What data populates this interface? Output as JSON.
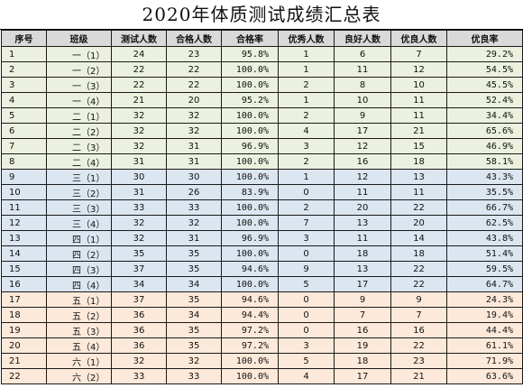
{
  "title": "2020年体质测试成绩汇总表",
  "headers": [
    "序号",
    "班级",
    "测试人数",
    "合格人数",
    "合格率",
    "优秀人数",
    "良好人数",
    "优良人数",
    "优良率"
  ],
  "rows": [
    {
      "group": 1,
      "cells": [
        "1",
        "一（1）",
        "24",
        "23",
        "95.8%",
        "1",
        "6",
        "7",
        "29.2%"
      ]
    },
    {
      "group": 1,
      "cells": [
        "2",
        "一（2）",
        "22",
        "22",
        "100.0%",
        "1",
        "11",
        "12",
        "54.5%"
      ]
    },
    {
      "group": 1,
      "cells": [
        "3",
        "一（3）",
        "22",
        "22",
        "100.0%",
        "2",
        "8",
        "10",
        "45.5%"
      ]
    },
    {
      "group": 1,
      "cells": [
        "4",
        "一（4）",
        "21",
        "20",
        "95.2%",
        "1",
        "10",
        "11",
        "52.4%"
      ]
    },
    {
      "group": 1,
      "cells": [
        "5",
        "二（1）",
        "32",
        "32",
        "100.0%",
        "2",
        "9",
        "11",
        "34.4%"
      ]
    },
    {
      "group": 1,
      "cells": [
        "6",
        "二（2）",
        "32",
        "32",
        "100.0%",
        "4",
        "17",
        "21",
        "65.6%"
      ]
    },
    {
      "group": 1,
      "cells": [
        "7",
        "二（3）",
        "32",
        "31",
        "96.9%",
        "3",
        "12",
        "15",
        "46.9%"
      ]
    },
    {
      "group": 1,
      "cells": [
        "8",
        "二（4）",
        "31",
        "31",
        "100.0%",
        "2",
        "16",
        "18",
        "58.1%"
      ]
    },
    {
      "group": 2,
      "cells": [
        "9",
        "三（1）",
        "30",
        "30",
        "100.0%",
        "1",
        "12",
        "13",
        "43.3%"
      ]
    },
    {
      "group": 2,
      "cells": [
        "10",
        "三（2）",
        "31",
        "26",
        "83.9%",
        "0",
        "11",
        "11",
        "35.5%"
      ]
    },
    {
      "group": 2,
      "cells": [
        "11",
        "三（3）",
        "33",
        "33",
        "100.0%",
        "2",
        "20",
        "22",
        "66.7%"
      ]
    },
    {
      "group": 2,
      "cells": [
        "12",
        "三（4）",
        "32",
        "32",
        "100.0%",
        "7",
        "13",
        "20",
        "62.5%"
      ]
    },
    {
      "group": 2,
      "cells": [
        "13",
        "四（1）",
        "32",
        "31",
        "96.9%",
        "3",
        "11",
        "14",
        "43.8%"
      ]
    },
    {
      "group": 2,
      "cells": [
        "14",
        "四（2）",
        "35",
        "35",
        "100.0%",
        "0",
        "18",
        "18",
        "51.4%"
      ]
    },
    {
      "group": 2,
      "cells": [
        "15",
        "四（3）",
        "37",
        "35",
        "94.6%",
        "9",
        "13",
        "22",
        "59.5%"
      ]
    },
    {
      "group": 2,
      "cells": [
        "16",
        "四（4）",
        "34",
        "34",
        "100.0%",
        "5",
        "17",
        "22",
        "64.7%"
      ]
    },
    {
      "group": 3,
      "cells": [
        "17",
        "五（1）",
        "37",
        "35",
        "94.6%",
        "0",
        "9",
        "9",
        "24.3%"
      ]
    },
    {
      "group": 3,
      "cells": [
        "18",
        "五（2）",
        "36",
        "34",
        "94.4%",
        "0",
        "7",
        "7",
        "19.4%"
      ]
    },
    {
      "group": 3,
      "cells": [
        "19",
        "五（3）",
        "36",
        "35",
        "97.2%",
        "0",
        "16",
        "16",
        "44.4%"
      ]
    },
    {
      "group": 3,
      "cells": [
        "20",
        "五（4）",
        "36",
        "35",
        "97.2%",
        "3",
        "19",
        "22",
        "61.1%"
      ]
    },
    {
      "group": 3,
      "cells": [
        "21",
        "六（1）",
        "32",
        "32",
        "100.0%",
        "5",
        "18",
        "23",
        "71.9%"
      ]
    },
    {
      "group": 3,
      "cells": [
        "22",
        "六（2）",
        "33",
        "33",
        "100.0%",
        "4",
        "17",
        "21",
        "63.6%"
      ]
    }
  ]
}
